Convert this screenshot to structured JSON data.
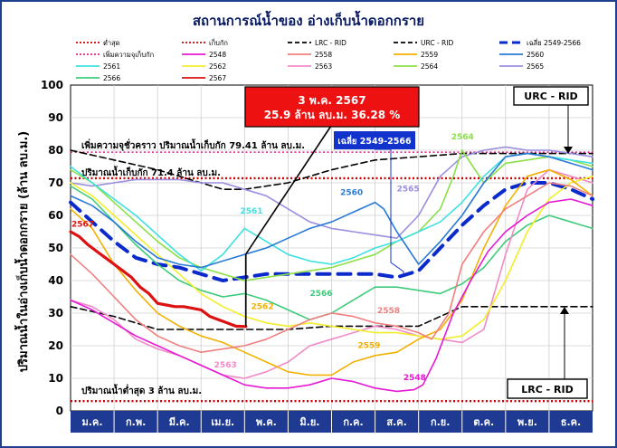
{
  "chart_data": {
    "type": "line",
    "title": "สถานการณ์น้ำของ อ่างเก็บน้ำดอกกราย",
    "ylabel": "ปริมาณน้ำในอ่างเก็บน้ำดอกกราย (ล้าน ลบ.ม.)",
    "ylim": [
      0,
      100
    ],
    "yticks": [
      "0",
      "10",
      "20",
      "30",
      "40",
      "50",
      "60",
      "70",
      "80",
      "90",
      "100"
    ],
    "months": [
      "ม.ค.",
      "ก.พ.",
      "มี.ค.",
      "เม.ย.",
      "พ.ค.",
      "มิ.ย.",
      "ก.ค.",
      "ส.ค.",
      "ก.ย.",
      "ต.ค.",
      "พ.ย.",
      "ธ.ค."
    ],
    "legend": [
      {
        "id": "min",
        "label": "ต่ำสุด",
        "color": "#cc0000",
        "style": "dotted"
      },
      {
        "id": "cap",
        "label": "เก็บกัก",
        "color": "#cc0000",
        "style": "dotted"
      },
      {
        "id": "lrc",
        "label": "LRC - RID",
        "color": "#000000",
        "style": "dashed"
      },
      {
        "id": "urc",
        "label": "URC - RID",
        "color": "#000000",
        "style": "dashed"
      },
      {
        "id": "avg",
        "label": "เฉลี่ย 2549-2566",
        "color": "#0a2acc",
        "style": "bigdash"
      },
      {
        "id": "tempcap",
        "label": "เพิ่มความจุเก็บกัก",
        "color": "#e0208a",
        "style": "dotted"
      },
      {
        "id": "y2548",
        "label": "2548",
        "color": "#e619d4",
        "style": "solid"
      },
      {
        "id": "y2558",
        "label": "2558",
        "color": "#f08080",
        "style": "solid"
      },
      {
        "id": "y2559",
        "label": "2559",
        "color": "#f2b100",
        "style": "solid"
      },
      {
        "id": "y2560",
        "label": "2560",
        "color": "#2a7bd6",
        "style": "solid"
      },
      {
        "id": "y2561",
        "label": "2561",
        "color": "#3fe0e0",
        "style": "solid"
      },
      {
        "id": "y2562",
        "label": "2562",
        "color": "#f2ee2a",
        "style": "solid"
      },
      {
        "id": "y2563",
        "label": "2563",
        "color": "#f28ac8",
        "style": "solid"
      },
      {
        "id": "y2564",
        "label": "2564",
        "color": "#8be04a",
        "style": "solid"
      },
      {
        "id": "y2565",
        "label": "2565",
        "color": "#9a8fe0",
        "style": "solid"
      },
      {
        "id": "y2566",
        "label": "2566",
        "color": "#3ecb7a",
        "style": "solid"
      },
      {
        "id": "y2567",
        "label": "2567",
        "color": "#dd1111",
        "style": "solid"
      }
    ],
    "reference_lines": {
      "minimum": 3,
      "capacity": 71.4,
      "temporary_capacity": 79.41
    },
    "series": [
      {
        "name": "2567",
        "x": [
          0,
          0.2,
          0.4,
          0.6,
          0.8,
          1.0,
          1.2,
          1.4,
          1.6,
          1.8,
          2.0,
          2.2,
          2.4,
          2.6,
          2.8,
          3.0,
          3.2,
          3.4,
          3.6,
          3.8,
          4.03
        ],
        "values": [
          55,
          53.5,
          51,
          49,
          47,
          45,
          43,
          41,
          38,
          36,
          33,
          32.5,
          32,
          32,
          31.5,
          31,
          29,
          28,
          27,
          26,
          25.9
        ]
      },
      {
        "name": "2548",
        "x": [
          0,
          0.5,
          1,
          1.5,
          2,
          2.5,
          3,
          3.5,
          4,
          4.5,
          5,
          5.5,
          6,
          6.5,
          7,
          7.5,
          7.9,
          8.1,
          8.4,
          8.8,
          9.2,
          9.6,
          10,
          10.5,
          11,
          11.5,
          12
        ],
        "values": [
          34,
          31,
          27,
          23,
          20,
          17,
          14,
          11,
          8,
          7,
          7,
          8,
          10,
          9,
          7,
          6,
          6.5,
          8,
          16,
          30,
          40,
          49,
          55,
          60,
          64,
          65,
          63
        ]
      },
      {
        "name": "2558",
        "x": [
          0,
          0.5,
          1,
          1.5,
          2,
          2.5,
          3,
          3.5,
          4,
          4.5,
          5,
          5.5,
          6,
          6.5,
          7,
          7.5,
          8,
          8.3,
          8.7,
          9,
          9.5,
          10,
          10.5,
          11,
          11.5,
          12
        ],
        "values": [
          48,
          42,
          35,
          28,
          23,
          20,
          18,
          19,
          20,
          22,
          25,
          28,
          30,
          29,
          27,
          26,
          24,
          22,
          30,
          45,
          55,
          62,
          66,
          70,
          69,
          66
        ]
      },
      {
        "name": "2559",
        "x": [
          0,
          0.5,
          1,
          1.5,
          2,
          2.5,
          3,
          3.5,
          4,
          4.5,
          5,
          5.5,
          6,
          6.5,
          7,
          7.5,
          8,
          8.5,
          9,
          9.5,
          10,
          10.5,
          11,
          11.5,
          12
        ],
        "values": [
          62,
          56,
          45,
          37,
          30,
          26,
          23,
          21,
          18,
          15,
          12,
          11,
          11,
          15,
          17,
          18,
          22,
          25,
          34,
          50,
          63,
          72,
          74,
          71,
          66
        ]
      },
      {
        "name": "2560",
        "x": [
          0,
          0.5,
          1,
          1.5,
          2,
          2.5,
          3,
          3.5,
          4,
          4.5,
          5,
          5.5,
          6,
          6.5,
          7,
          7.2,
          7.5,
          8,
          8.5,
          9,
          9.5,
          10,
          10.5,
          11,
          11.5,
          12
        ],
        "values": [
          66,
          63,
          58,
          52,
          47,
          45,
          44,
          46,
          48,
          50,
          53,
          56,
          58,
          61,
          64,
          62,
          55,
          45,
          52,
          60,
          70,
          78,
          79,
          78,
          76,
          74
        ]
      },
      {
        "name": "2561",
        "x": [
          0,
          0.5,
          1,
          1.5,
          2,
          2.5,
          3,
          3.5,
          4,
          4.5,
          5,
          5.5,
          6,
          6.5,
          7,
          7.5,
          8,
          8.5,
          9,
          9.5,
          10,
          10.5,
          11,
          11.5,
          12
        ],
        "values": [
          75,
          70,
          65,
          60,
          54,
          48,
          43,
          48,
          56,
          52,
          48,
          46,
          45,
          47,
          50,
          52,
          55,
          58,
          64,
          72,
          78,
          79,
          78,
          77,
          76
        ]
      },
      {
        "name": "2562",
        "x": [
          0,
          0.5,
          1,
          1.5,
          2,
          2.5,
          3,
          3.5,
          4,
          4.5,
          5,
          5.5,
          6,
          6.5,
          7,
          7.5,
          8,
          8.5,
          9,
          9.5,
          10,
          10.5,
          11,
          11.5,
          12
        ],
        "values": [
          70,
          66,
          60,
          54,
          48,
          42,
          36,
          32,
          29,
          27,
          26,
          27,
          26,
          25,
          24,
          24,
          23,
          22,
          23,
          28,
          40,
          55,
          65,
          70,
          72
        ]
      },
      {
        "name": "2563",
        "x": [
          0,
          0.5,
          1,
          1.5,
          2,
          2.5,
          3,
          3.5,
          4,
          4.5,
          5,
          5.5,
          6,
          6.5,
          7,
          7.5,
          8,
          8.5,
          9,
          9.5,
          10,
          10.5,
          11,
          11.5,
          12
        ],
        "values": [
          34,
          32,
          28,
          22,
          19,
          17,
          14,
          11,
          10,
          12,
          15,
          20,
          22,
          24,
          26,
          25,
          23,
          22,
          21,
          25,
          48,
          68,
          74,
          72,
          70
        ]
      },
      {
        "name": "2564",
        "x": [
          0,
          0.5,
          1,
          1.5,
          2,
          2.5,
          3,
          3.5,
          4,
          4.5,
          5,
          5.5,
          6,
          6.5,
          7,
          7.5,
          8,
          8.5,
          8.8,
          9,
          9.5,
          10,
          10.5,
          11,
          11.5,
          12
        ],
        "values": [
          74,
          70,
          64,
          58,
          52,
          47,
          44,
          42,
          40,
          41,
          42,
          43,
          44,
          46,
          48,
          52,
          55,
          62,
          72,
          80,
          70,
          76,
          77,
          78,
          77,
          75
        ]
      },
      {
        "name": "2565",
        "x": [
          0,
          0.5,
          1,
          1.5,
          2,
          2.5,
          3,
          3.5,
          4,
          4.5,
          5,
          5.5,
          6,
          6.5,
          7,
          7.5,
          8,
          8.5,
          9,
          9.5,
          10,
          10.5,
          11,
          11.5,
          12
        ],
        "values": [
          70,
          69,
          70,
          71,
          71,
          71,
          70,
          70,
          68,
          66,
          62,
          58,
          56,
          55,
          54,
          53,
          60,
          72,
          78,
          80,
          81,
          80,
          80,
          79,
          78
        ]
      },
      {
        "name": "2566",
        "x": [
          0,
          0.5,
          1,
          1.5,
          2,
          2.5,
          3,
          3.5,
          4,
          4.5,
          5,
          5.5,
          6,
          6.5,
          7,
          7.5,
          8,
          8.5,
          9,
          9.5,
          10,
          10.5,
          11,
          11.5,
          12
        ],
        "values": [
          69,
          65,
          58,
          51,
          45,
          40,
          37,
          35,
          36,
          34,
          31,
          28,
          30,
          34,
          38,
          38,
          37,
          36,
          39,
          44,
          52,
          57,
          60,
          58,
          56
        ]
      },
      {
        "name": "เฉลี่ย 2549-2566",
        "x": [
          0,
          0.5,
          1,
          1.5,
          2,
          2.5,
          3,
          3.5,
          4,
          4.5,
          5,
          5.5,
          6,
          6.5,
          7,
          7.5,
          8,
          8.5,
          9,
          9.5,
          10,
          10.5,
          11,
          11.5,
          12
        ],
        "values": [
          64,
          58,
          52,
          47,
          45,
          44,
          42,
          40,
          41,
          42,
          42,
          42,
          42,
          42,
          42,
          41,
          43,
          50,
          57,
          63,
          68,
          70,
          70,
          68,
          65
        ]
      },
      {
        "name": "URC - RID",
        "x": [
          0,
          1,
          2,
          3,
          3.5,
          4,
          5,
          6,
          7,
          8,
          9,
          10,
          11,
          12
        ],
        "values": [
          80,
          77,
          74,
          70,
          68,
          68,
          70,
          74,
          77,
          78,
          79,
          79,
          79,
          79
        ]
      },
      {
        "name": "LRC - RID",
        "x": [
          0,
          1,
          2,
          3,
          4,
          5,
          6,
          7,
          8,
          9,
          10,
          11,
          12
        ],
        "values": [
          32,
          29,
          25,
          25,
          25,
          25,
          26,
          26,
          26,
          32,
          32,
          32,
          32
        ]
      }
    ],
    "annotations": {
      "current_date": "3 พ.ค. 2567",
      "current_value": "25.9 ล้าน ลบ.ม. 36.28 %",
      "avg_box": "เฉลี่ย 2549-2566",
      "temp_capacity_label": "เพิ่มความจุชั่วคราว ปริมาณน้ำเก็บกัก 79.41 ล้าน ลบ.ม.",
      "capacity_label": "ปริมาณน้ำเก็บกัก 71.4 ล้าน ลบ.ม.",
      "min_label": "ปริมาณน้ำต่ำสุด 3 ล้าน ลบ.ม.",
      "urc_box": "URC - RID",
      "lrc_box": "LRC - RID"
    }
  }
}
